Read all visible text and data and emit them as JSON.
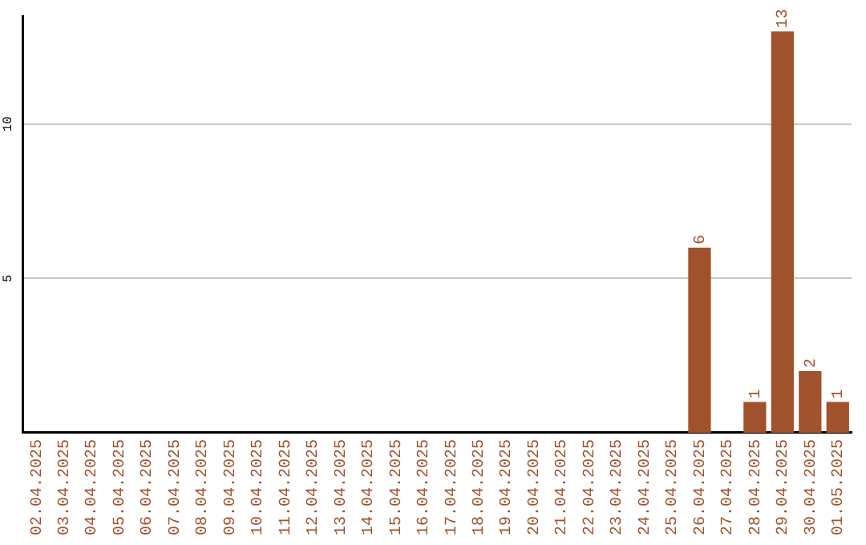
{
  "chart_data": {
    "type": "bar",
    "categories": [
      "02.04.2025",
      "03.04.2025",
      "04.04.2025",
      "05.04.2025",
      "06.04.2025",
      "07.04.2025",
      "08.04.2025",
      "09.04.2025",
      "10.04.2025",
      "11.04.2025",
      "12.04.2025",
      "13.04.2025",
      "14.04.2025",
      "15.04.2025",
      "16.04.2025",
      "17.04.2025",
      "18.04.2025",
      "19.04.2025",
      "20.04.2025",
      "21.04.2025",
      "22.04.2025",
      "23.04.2025",
      "24.04.2025",
      "25.04.2025",
      "26.04.2025",
      "27.04.2025",
      "28.04.2025",
      "29.04.2025",
      "30.04.2025",
      "01.05.2025"
    ],
    "values": [
      0,
      0,
      0,
      0,
      0,
      0,
      0,
      0,
      0,
      0,
      0,
      0,
      0,
      0,
      0,
      0,
      0,
      0,
      0,
      0,
      0,
      0,
      0,
      0,
      6,
      0,
      1,
      13,
      2,
      1
    ],
    "value_labels": [
      null,
      null,
      null,
      null,
      null,
      null,
      null,
      null,
      null,
      null,
      null,
      null,
      null,
      null,
      null,
      null,
      null,
      null,
      null,
      null,
      null,
      null,
      null,
      null,
      "6",
      null,
      "1",
      "13",
      "2",
      "1"
    ],
    "color": "#a0522d",
    "ylim": [
      0,
      13.5
    ],
    "yticks": [
      5,
      10
    ],
    "grid": "y",
    "legend": false
  }
}
